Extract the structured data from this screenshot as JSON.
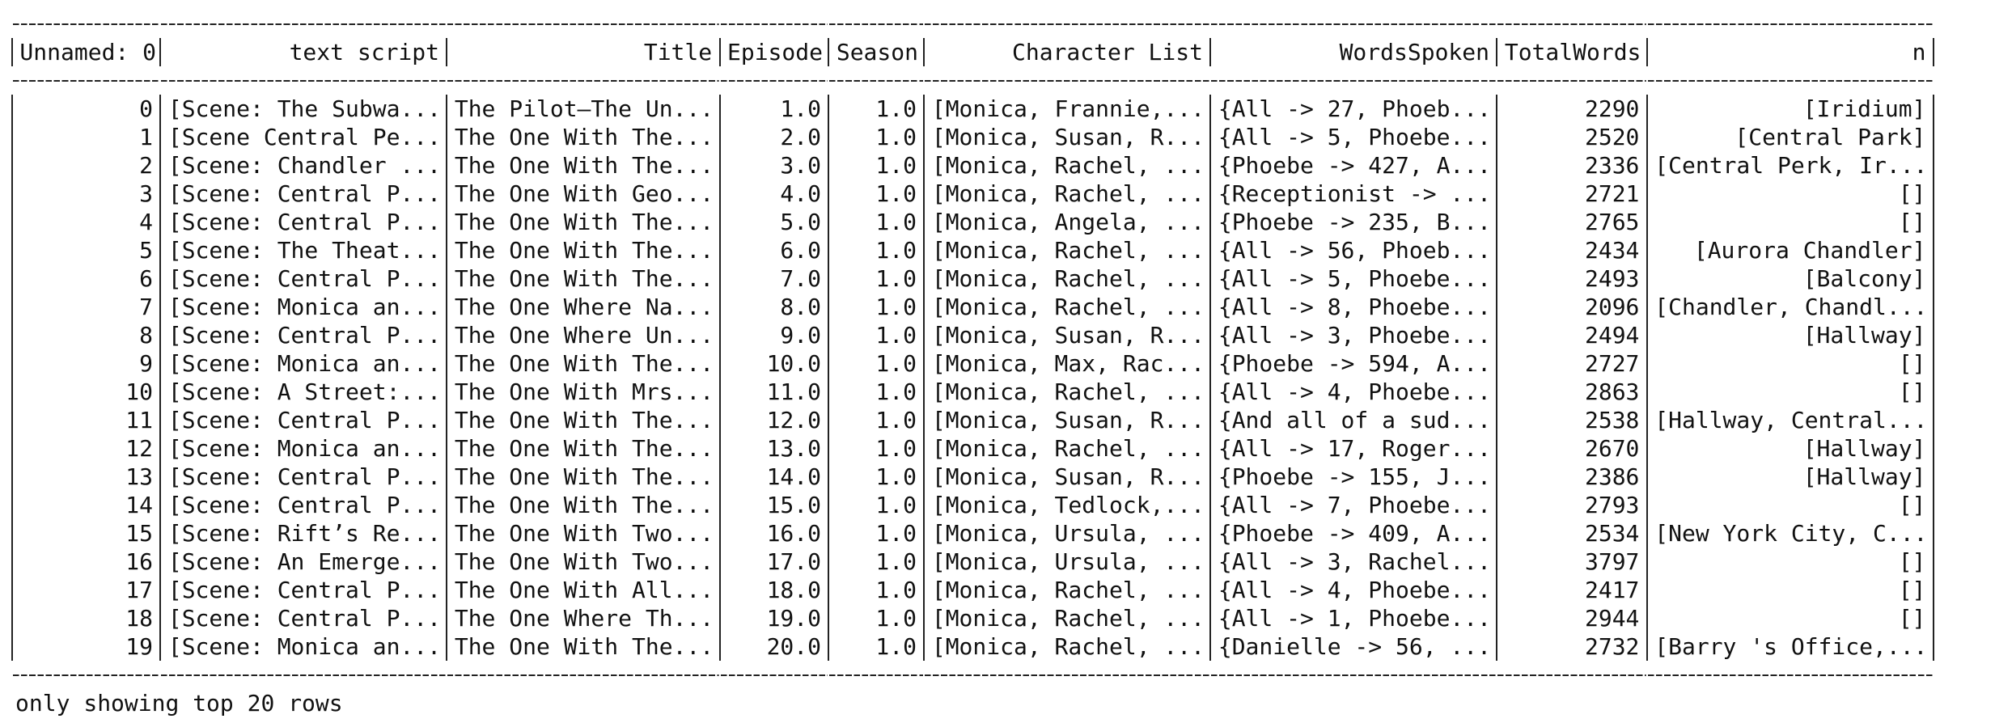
{
  "table": {
    "headers": [
      "Unnamed: 0",
      "text script",
      "Title",
      "Episode",
      "Season",
      "Character List",
      "WordsSpoken",
      "TotalWords",
      "n"
    ],
    "rows": [
      [
        "0",
        "[Scene: The Subwa...",
        "The Pilot—The Un...",
        "1.0",
        "1.0",
        "[Monica, Frannie,...",
        "{All -> 27, Phoeb...",
        "2290",
        "[Iridium]"
      ],
      [
        "1",
        "[Scene Central Pe...",
        "The One With The...",
        "2.0",
        "1.0",
        "[Monica, Susan, R...",
        "{All -> 5, Phoebe...",
        "2520",
        "[Central Park]"
      ],
      [
        "2",
        "[Scene: Chandler ...",
        "The One With The...",
        "3.0",
        "1.0",
        "[Monica, Rachel, ...",
        "{Phoebe -> 427, A...",
        "2336",
        "[Central Perk, Ir..."
      ],
      [
        "3",
        "[Scene: Central P...",
        "The One With Geo...",
        "4.0",
        "1.0",
        "[Monica, Rachel, ...",
        "{Receptionist -> ...",
        "2721",
        "[]"
      ],
      [
        "4",
        "[Scene: Central P...",
        "The One With The...",
        "5.0",
        "1.0",
        "[Monica, Angela, ...",
        "{Phoebe -> 235, B...",
        "2765",
        "[]"
      ],
      [
        "5",
        "[Scene: The Theat...",
        "The One With The...",
        "6.0",
        "1.0",
        "[Monica, Rachel, ...",
        "{All -> 56, Phoeb...",
        "2434",
        "[Aurora Chandler]"
      ],
      [
        "6",
        "[Scene: Central P...",
        "The One With The...",
        "7.0",
        "1.0",
        "[Monica, Rachel, ...",
        "{All -> 5, Phoebe...",
        "2493",
        "[Balcony]"
      ],
      [
        "7",
        "[Scene: Monica an...",
        "The One Where Na...",
        "8.0",
        "1.0",
        "[Monica, Rachel, ...",
        "{All -> 8, Phoebe...",
        "2096",
        "[Chandler, Chandl..."
      ],
      [
        "8",
        "[Scene: Central P...",
        "The One Where Un...",
        "9.0",
        "1.0",
        "[Monica, Susan, R...",
        "{All -> 3, Phoebe...",
        "2494",
        "[Hallway]"
      ],
      [
        "9",
        "[Scene: Monica an...",
        "The One With The...",
        "10.0",
        "1.0",
        "[Monica, Max, Rac...",
        "{Phoebe -> 594, A...",
        "2727",
        "[]"
      ],
      [
        "10",
        "[Scene: A Street:...",
        "The One With Mrs...",
        "11.0",
        "1.0",
        "[Monica, Rachel, ...",
        "{All -> 4, Phoebe...",
        "2863",
        "[]"
      ],
      [
        "11",
        "[Scene: Central P...",
        "The One With The...",
        "12.0",
        "1.0",
        "[Monica, Susan, R...",
        "{And all of a sud...",
        "2538",
        "[Hallway, Central..."
      ],
      [
        "12",
        "[Scene: Monica an...",
        "The One With The...",
        "13.0",
        "1.0",
        "[Monica, Rachel, ...",
        "{All -> 17, Roger...",
        "2670",
        "[Hallway]"
      ],
      [
        "13",
        "[Scene: Central P...",
        "The One With The...",
        "14.0",
        "1.0",
        "[Monica, Susan, R...",
        "{Phoebe -> 155, J...",
        "2386",
        "[Hallway]"
      ],
      [
        "14",
        "[Scene: Central P...",
        "The One With The...",
        "15.0",
        "1.0",
        "[Monica, Tedlock,...",
        "{All -> 7, Phoebe...",
        "2793",
        "[]"
      ],
      [
        "15",
        "[Scene: Rift’s Re...",
        "The One With Two...",
        "16.0",
        "1.0",
        "[Monica, Ursula, ...",
        "{Phoebe -> 409, A...",
        "2534",
        "[New York City, C..."
      ],
      [
        "16",
        "[Scene: An Emerge...",
        "The One With Two...",
        "17.0",
        "1.0",
        "[Monica, Ursula, ...",
        "{All -> 3, Rachel...",
        "3797",
        "[]"
      ],
      [
        "17",
        "[Scene: Central P...",
        "The One With All...",
        "18.0",
        "1.0",
        "[Monica, Rachel, ...",
        "{All -> 4, Phoebe...",
        "2417",
        "[]"
      ],
      [
        "18",
        "[Scene: Central P...",
        "The One Where Th...",
        "19.0",
        "1.0",
        "[Monica, Rachel, ...",
        "{All -> 1, Phoebe...",
        "2944",
        "[]"
      ],
      [
        "19",
        "[Scene: Monica an...",
        "The One With The...",
        "20.0",
        "1.0",
        "[Monica, Rachel, ...",
        "{Danielle -> 56, ...",
        "2732",
        "[Barry 's Office,..."
      ]
    ]
  },
  "footer": "only showing top 20 rows"
}
